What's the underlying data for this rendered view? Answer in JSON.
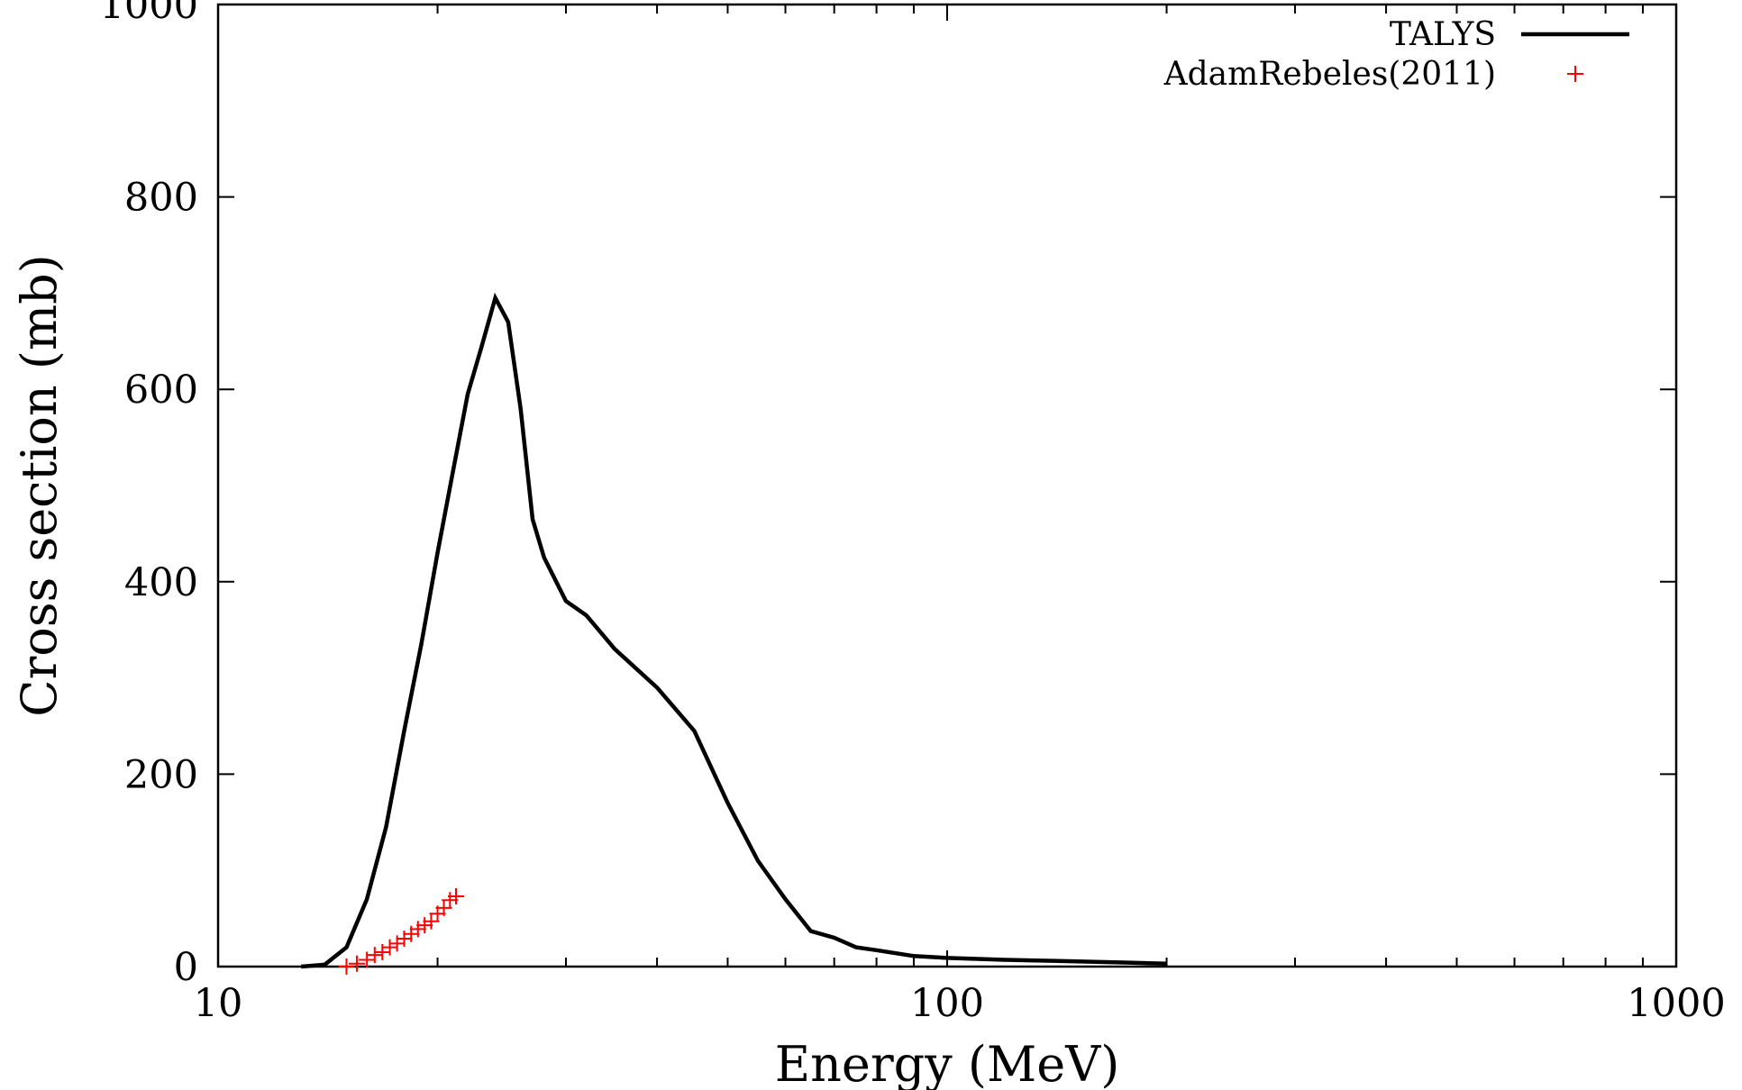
{
  "chart_data": {
    "type": "line",
    "xlabel": "Energy (MeV)",
    "ylabel": "Cross section (mb)",
    "xscale": "log",
    "xlim": [
      10,
      1000
    ],
    "ylim": [
      0,
      1000
    ],
    "xticks": [
      10,
      100,
      1000
    ],
    "xtick_labels": [
      "10",
      "100",
      "1000"
    ],
    "yticks": [
      0,
      200,
      400,
      600,
      800,
      1000
    ],
    "ytick_labels": [
      "0",
      "200",
      "400",
      "600",
      "800",
      "1000"
    ],
    "grid": false,
    "legend_position": "top-right",
    "series": [
      {
        "name": "TALYS",
        "style": "line",
        "color": "#000000",
        "x": [
          13,
          14,
          15,
          16,
          17,
          18,
          19,
          20,
          21,
          22,
          23,
          24,
          25,
          26,
          27,
          28,
          30,
          32,
          35,
          40,
          45,
          50,
          55,
          60,
          65,
          70,
          75,
          80,
          90,
          100,
          120,
          140,
          160,
          180,
          200
        ],
        "y": [
          0,
          2,
          20,
          70,
          145,
          245,
          335,
          430,
          515,
          595,
          645,
          695,
          670,
          580,
          465,
          425,
          380,
          365,
          330,
          290,
          245,
          170,
          110,
          70,
          37,
          30,
          20,
          17,
          11,
          9,
          7,
          6,
          5,
          4,
          3
        ]
      },
      {
        "name": "AdamRebeles(2011)",
        "style": "points",
        "marker": "+",
        "color": "#ff0000",
        "x": [
          15.0,
          15.5,
          16.0,
          16.4,
          16.8,
          17.2,
          17.6,
          18.0,
          18.4,
          18.8,
          19.2,
          19.6,
          20.0,
          20.4,
          20.8,
          21.2
        ],
        "y": [
          0,
          3,
          7,
          12,
          15,
          20,
          24,
          29,
          34,
          39,
          43,
          47,
          55,
          61,
          69,
          73
        ]
      }
    ]
  }
}
